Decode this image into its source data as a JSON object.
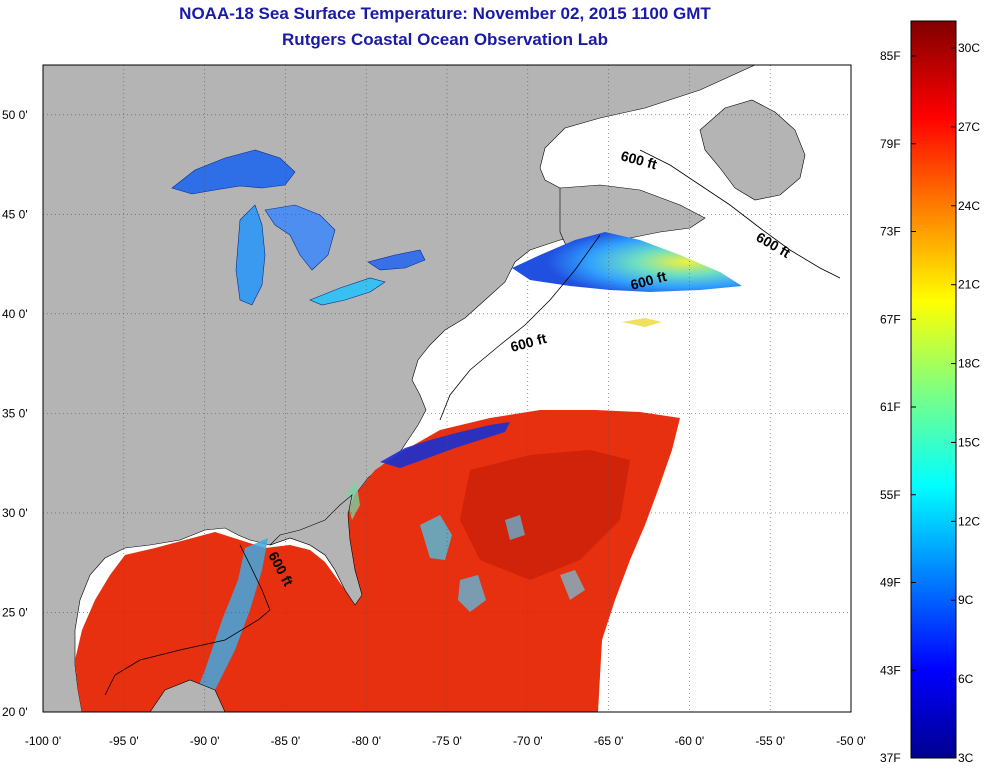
{
  "header": {
    "title": "NOAA-18 Sea Surface Temperature:  November 02, 2015 1100 GMT",
    "subtitle": "Rutgers Coastal Ocean Observation Lab"
  },
  "map": {
    "lon_range": [
      -100,
      -50
    ],
    "lat_range": [
      20,
      52.5
    ],
    "lon_ticks": [
      "-100 0'",
      "-95 0'",
      "-90 0'",
      "-85 0'",
      "-80 0'",
      "-75 0'",
      "-70 0'",
      "-65 0'",
      "-60 0'",
      "-55 0'",
      "-50 0'"
    ],
    "lat_ticks": [
      "20 0'",
      "25 0'",
      "30 0'",
      "35 0'",
      "40 0'",
      "45 0'",
      "50 0'"
    ],
    "isobath_labels": [
      "600 ft",
      "600 ft",
      "600 ft",
      "600 ft",
      "600 ft"
    ],
    "colors": {
      "land": "#b4b4b4",
      "no_data": "#ffffff",
      "warm_sst": "#e63010"
    }
  },
  "colorbar": {
    "fahrenheit_labels": [
      "85F",
      "79F",
      "73F",
      "67F",
      "61F",
      "55F",
      "49F",
      "43F",
      "37F"
    ],
    "celsius_labels": [
      "30C",
      "27C",
      "24C",
      "21C",
      "18C",
      "15C",
      "12C",
      "9C",
      "6C",
      "3C"
    ],
    "colormap": "jet",
    "range_c": [
      3,
      31
    ]
  }
}
